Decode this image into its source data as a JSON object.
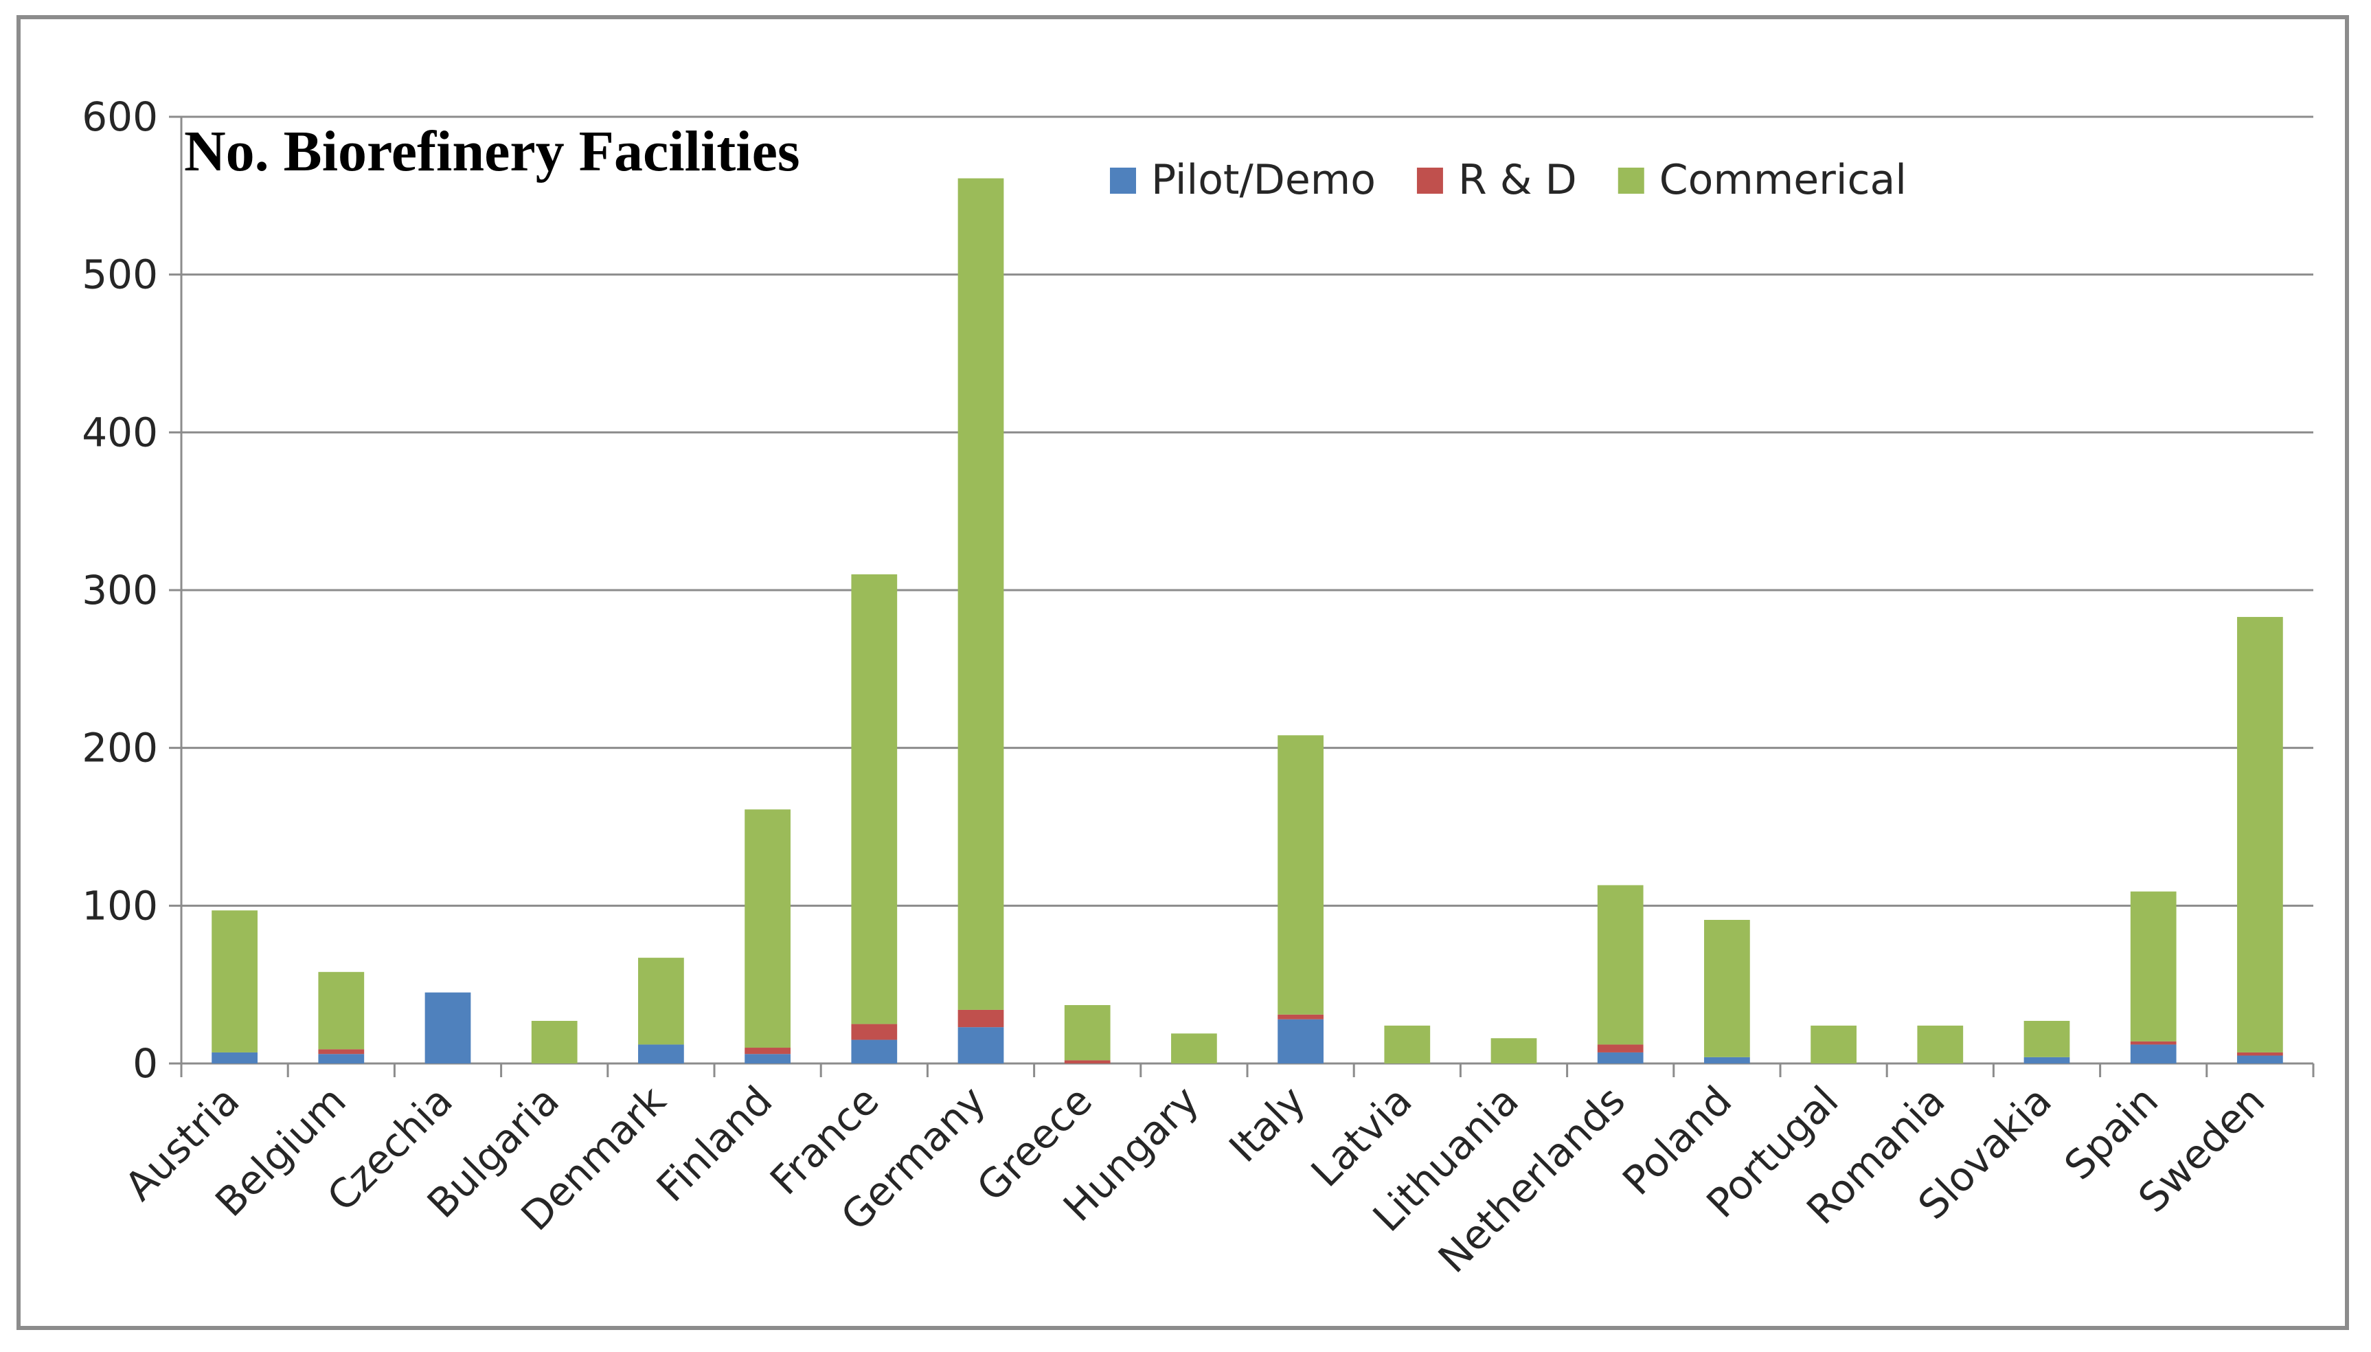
{
  "chart_data": {
    "type": "bar",
    "stacked": true,
    "title": "No. Biorefinery Facilities",
    "xlabel": "",
    "ylabel": "",
    "ylim": [
      0,
      600
    ],
    "yticks": [
      0,
      100,
      200,
      300,
      400,
      500,
      600
    ],
    "grid": true,
    "legend_position": "top-center",
    "categories": [
      "Austria",
      "Belgium",
      "Czechia",
      "Bulgaria",
      "Denmark",
      "Finland",
      "France",
      "Germany",
      "Greece",
      "Hungary",
      "Italy",
      "Latvia",
      "Lithuania",
      "Netherlands",
      "Poland",
      "Portugal",
      "Romania",
      "Slovakia",
      "Spain",
      "Sweden"
    ],
    "series": [
      {
        "name": "Pilot/Demo",
        "color": "#4f81bd",
        "values": [
          7,
          6,
          45,
          0,
          12,
          6,
          15,
          23,
          0,
          0,
          28,
          0,
          0,
          7,
          4,
          0,
          0,
          4,
          12,
          5
        ]
      },
      {
        "name": "R & D",
        "color": "#c0504d",
        "values": [
          0,
          3,
          0,
          0,
          0,
          4,
          10,
          11,
          2,
          0,
          3,
          0,
          0,
          5,
          0,
          0,
          0,
          0,
          2,
          2
        ]
      },
      {
        "name": "Commerical",
        "color": "#9bbb59",
        "values": [
          90,
          49,
          0,
          27,
          55,
          151,
          285,
          527,
          35,
          19,
          177,
          24,
          16,
          101,
          87,
          24,
          24,
          23,
          95,
          276
        ]
      }
    ]
  }
}
